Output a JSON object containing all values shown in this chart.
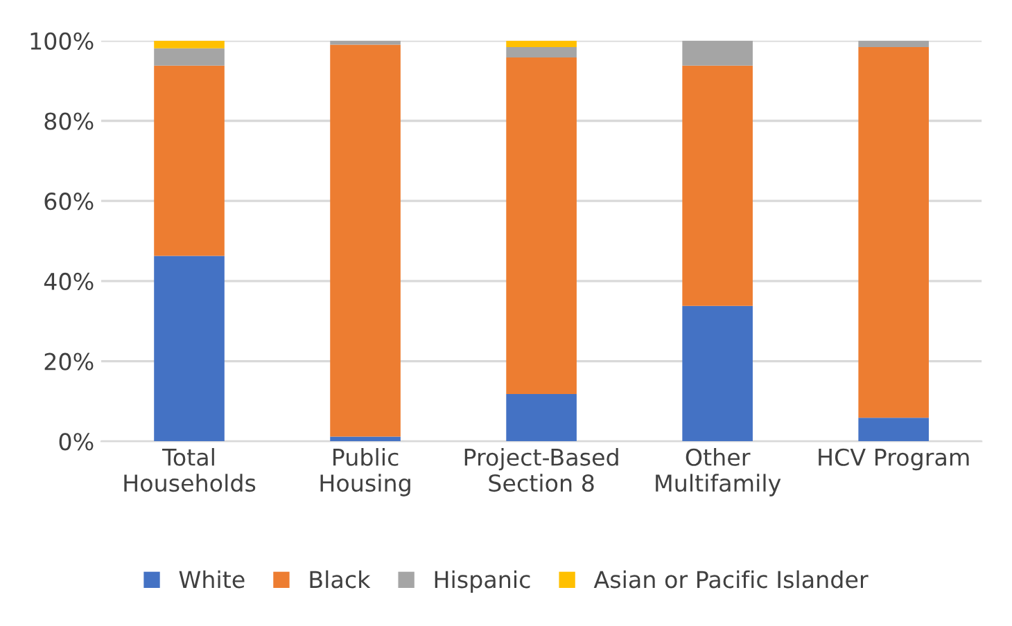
{
  "chart_data": {
    "type": "bar",
    "stacked": true,
    "categories": [
      "Total\nHouseholds",
      "Public\nHousing",
      "Project-Based\nSection 8",
      "Other\nMultifamily",
      "HCV Program"
    ],
    "series": [
      {
        "name": "White",
        "color": "#4472c4",
        "values": [
          46.3,
          1.2,
          11.8,
          33.8,
          5.9
        ]
      },
      {
        "name": "Black",
        "color": "#ed7d31",
        "values": [
          47.5,
          97.8,
          84.0,
          60.0,
          92.5
        ]
      },
      {
        "name": "Hispanic",
        "color": "#a5a5a5",
        "values": [
          4.3,
          1.0,
          2.6,
          6.2,
          1.6
        ]
      },
      {
        "name": "Asian or Pacific Islander",
        "color": "#ffc000",
        "values": [
          1.9,
          0,
          1.6,
          0,
          0
        ]
      }
    ],
    "ylim": [
      0,
      100
    ],
    "yticks": [
      {
        "value": 0,
        "label": "0%"
      },
      {
        "value": 20,
        "label": "20%"
      },
      {
        "value": 40,
        "label": "40%"
      },
      {
        "value": 60,
        "label": "60%"
      },
      {
        "value": 80,
        "label": "80%"
      },
      {
        "value": 100,
        "label": "100%"
      }
    ],
    "grid": "y",
    "legend": "bottom"
  }
}
